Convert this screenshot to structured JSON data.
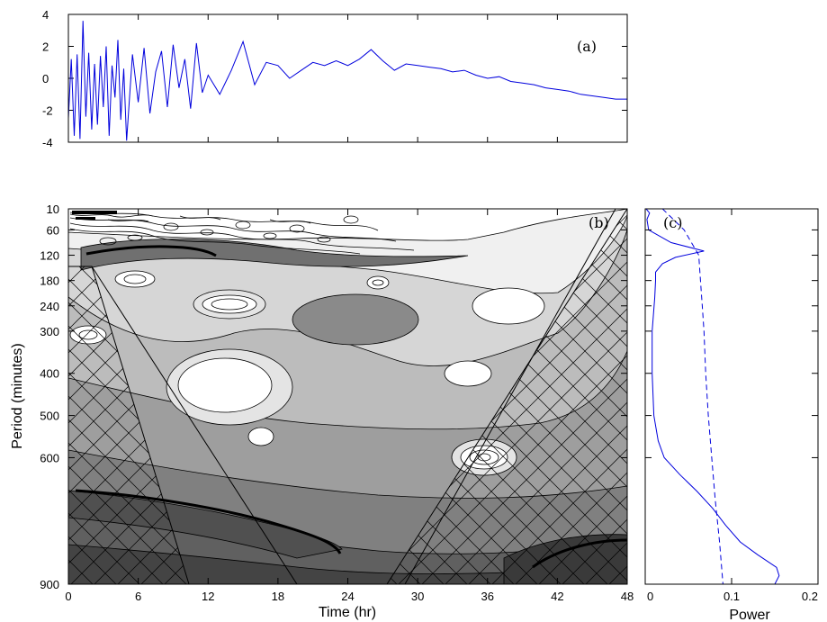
{
  "chart_data": [
    {
      "panel": "a",
      "type": "line",
      "panel_label": "(a)",
      "xlim": [
        0,
        48
      ],
      "ylim": [
        -4,
        4
      ],
      "yticks": [
        4,
        2,
        0,
        -2,
        -4
      ],
      "series_color": "#0000dd",
      "series": [
        {
          "x": [
            0,
            0.25,
            0.5,
            0.75,
            1,
            1.25,
            1.5,
            1.75,
            2,
            2.25,
            2.5,
            2.75,
            3,
            3.25,
            3.5,
            3.75,
            4,
            4.25,
            4.5,
            4.75,
            5,
            5.5,
            6,
            6.5,
            7,
            7.5,
            8,
            8.5,
            9,
            9.5,
            10,
            10.5,
            11,
            11.5,
            12,
            13,
            14,
            15,
            16,
            17,
            18,
            19,
            20,
            21,
            22,
            23,
            24,
            25,
            26,
            27,
            28,
            29,
            30,
            31,
            32,
            33,
            34,
            35,
            36,
            37,
            38,
            39,
            40,
            41,
            42,
            43,
            44,
            45,
            46,
            47,
            48
          ],
          "y": [
            -2.5,
            1.2,
            -3.6,
            1.5,
            -3.8,
            3.6,
            -2.4,
            1.6,
            -3.2,
            0.9,
            -2.9,
            1.4,
            -1.8,
            2.0,
            -3.6,
            0.8,
            -1.2,
            2.4,
            -2.6,
            0.6,
            -3.9,
            1.5,
            -1.5,
            1.9,
            -2.2,
            0.4,
            1.7,
            -1.8,
            2.1,
            -0.6,
            1.2,
            -1.9,
            2.2,
            -0.9,
            0.2,
            -1.0,
            0.5,
            2.3,
            -0.4,
            1.0,
            0.8,
            0.0,
            0.5,
            1.0,
            0.8,
            1.1,
            0.8,
            1.2,
            1.8,
            1.1,
            0.5,
            0.9,
            0.8,
            0.7,
            0.6,
            0.4,
            0.5,
            0.2,
            0.0,
            0.1,
            -0.2,
            -0.3,
            -0.4,
            -0.6,
            -0.7,
            -0.8,
            -1.0,
            -1.1,
            -1.2,
            -1.3,
            -1.3
          ]
        }
      ]
    },
    {
      "panel": "b",
      "type": "heatmap",
      "panel_label": "(b)",
      "xlabel": "Time (hr)",
      "ylabel": "Period (minutes)",
      "xlim": [
        0,
        48
      ],
      "xticks": [
        0,
        6,
        12,
        18,
        24,
        30,
        36,
        42,
        48
      ],
      "yticks": [
        10,
        60,
        120,
        180,
        240,
        300,
        400,
        500,
        600,
        900
      ],
      "ylim": [
        10,
        900
      ],
      "colormap": "grayscale",
      "cone_of_influence": "cross-hatched"
    },
    {
      "panel": "c",
      "type": "line",
      "panel_label": "(c)",
      "xlabel": "Power",
      "xlim": [
        0,
        0.2
      ],
      "xticks": [
        "0",
        "0.1",
        "0.2"
      ],
      "ylim": [
        10,
        900
      ],
      "series_color": "#0000dd",
      "series": [
        {
          "style": "solid",
          "period": [
            10,
            20,
            35,
            60,
            90,
            110,
            125,
            140,
            160,
            180,
            220,
            300,
            400,
            500,
            560,
            600,
            640,
            680,
            720,
            760,
            800,
            830,
            860,
            880,
            900
          ],
          "power": [
            0.001,
            0.005,
            0.002,
            0.004,
            0.03,
            0.068,
            0.035,
            0.02,
            0.012,
            0.012,
            0.011,
            0.008,
            0.008,
            0.01,
            0.015,
            0.022,
            0.04,
            0.06,
            0.078,
            0.093,
            0.11,
            0.13,
            0.152,
            0.155,
            0.15
          ]
        },
        {
          "style": "dashed",
          "period": [
            10,
            60,
            120,
            180,
            240,
            300,
            400,
            500,
            600,
            700,
            800,
            900
          ],
          "power": [
            0.02,
            0.045,
            0.062,
            0.064,
            0.066,
            0.068,
            0.07,
            0.073,
            0.077,
            0.081,
            0.086,
            0.09
          ]
        }
      ]
    }
  ]
}
